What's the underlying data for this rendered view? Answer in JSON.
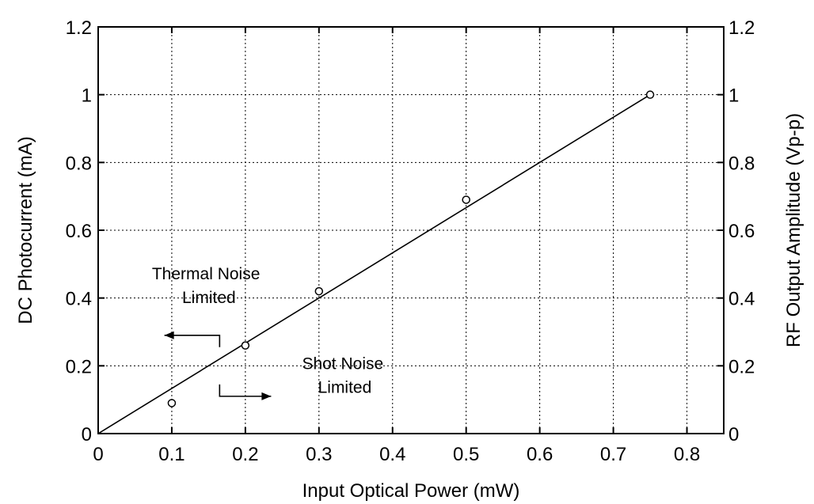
{
  "chart_data": {
    "type": "scatter",
    "xlabel": "Input Optical Power (mW)",
    "ylabel": "DC Photocurrent (mA)",
    "ylabel_right": "RF Output Amplitude (Vp-p)",
    "xlim": [
      0,
      0.85
    ],
    "ylim": [
      0,
      1.2
    ],
    "x_ticks": [
      0,
      0.1,
      0.2,
      0.3,
      0.4,
      0.5,
      0.6,
      0.7,
      0.8
    ],
    "x_tick_labels": [
      "0",
      "0.1",
      "0.2",
      "0.3",
      "0.4",
      "0.5",
      "0.6",
      "0.7",
      "0.8"
    ],
    "y_ticks": [
      0,
      0.2,
      0.4,
      0.6,
      0.8,
      1.0,
      1.2
    ],
    "y_tick_labels": [
      "0",
      "0.2",
      "0.4",
      "0.6",
      "0.8",
      "1",
      "1.2"
    ],
    "y_right_ticks": [
      0,
      0.2,
      0.4,
      0.6,
      0.8,
      1.0,
      1.2
    ],
    "y_right_tick_labels": [
      "0",
      "0.2",
      "0.4",
      "0.6",
      "0.8",
      "1",
      "1.2"
    ],
    "grid": true,
    "series": [
      {
        "style": "circle-markers",
        "points": [
          {
            "x": 0.1,
            "y": 0.09
          },
          {
            "x": 0.2,
            "y": 0.26
          },
          {
            "x": 0.3,
            "y": 0.42
          },
          {
            "x": 0.5,
            "y": 0.69
          },
          {
            "x": 0.75,
            "y": 1.0
          }
        ]
      },
      {
        "style": "line",
        "points": [
          {
            "x": 0,
            "y": 0
          },
          {
            "x": 0.75,
            "y": 1.0
          }
        ]
      }
    ],
    "annotations": [
      {
        "lines": [
          "Thermal Noise",
          "Limited"
        ],
        "x": 0.073,
        "y": 0.455,
        "arrow": "left",
        "arrow_from": {
          "x": 0.165,
          "y": 0.29
        },
        "arrow_to": {
          "x": 0.09,
          "y": 0.29
        },
        "arrow_stem_to": {
          "x": 0.165,
          "y": 0.255
        }
      },
      {
        "lines": [
          "Shot Noise",
          "Limited"
        ],
        "x": 0.277,
        "y": 0.19,
        "arrow": "right",
        "arrow_from": {
          "x": 0.165,
          "y": 0.145
        },
        "arrow_to": {
          "x": 0.235,
          "y": 0.11
        },
        "arrow_stem_to": {
          "x": 0.165,
          "y": 0.11
        }
      }
    ]
  }
}
